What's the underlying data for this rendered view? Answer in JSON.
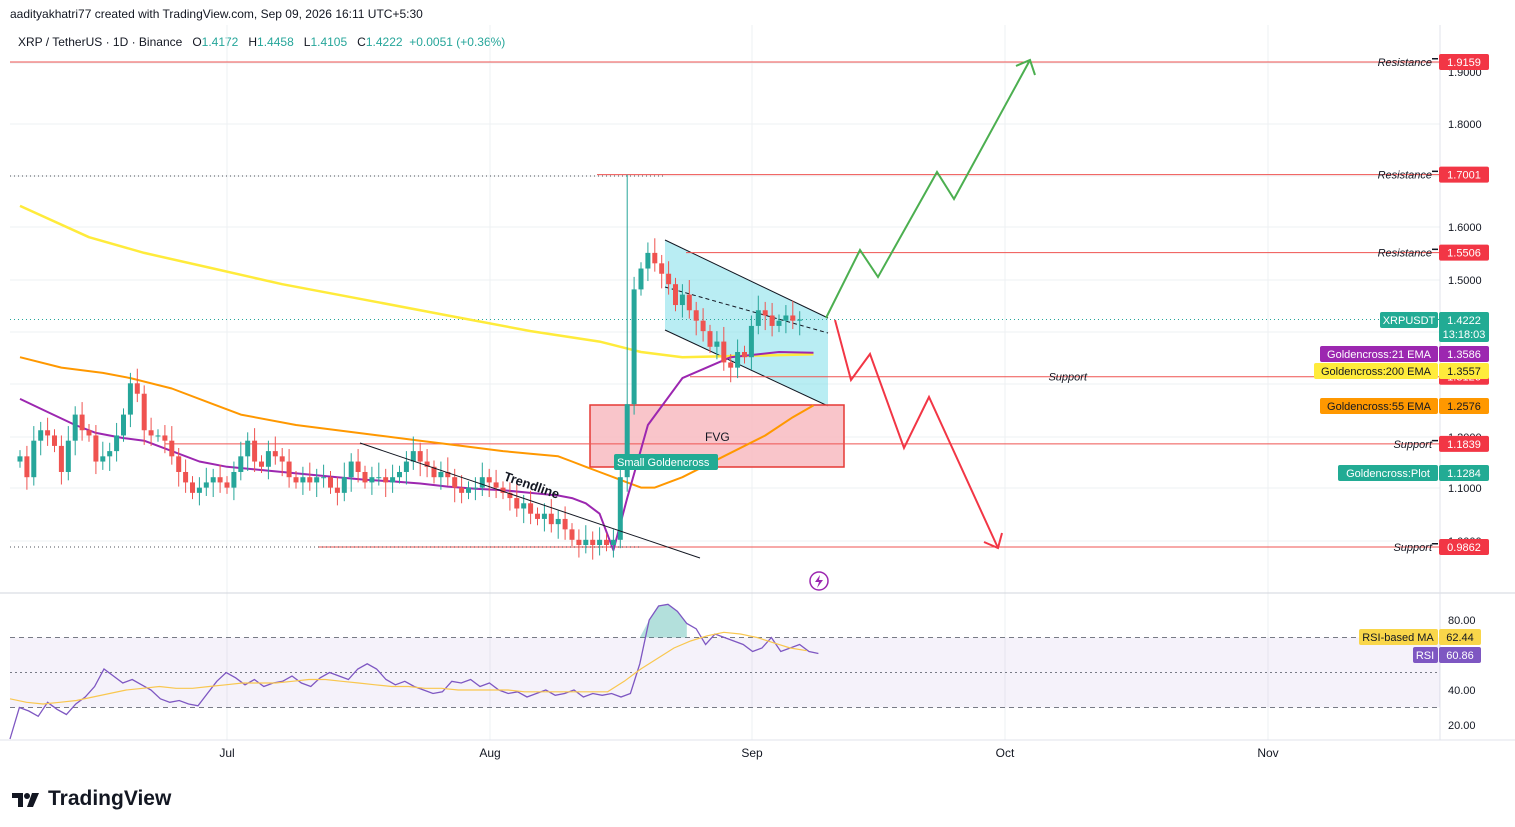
{
  "header": {
    "credit": "aadityakhatri77 created with TradingView.com, Sep 09, 2026 16:11 UTC+5:30",
    "symbol": "XRP / TetherUS · 1D · Binance",
    "o_label": "O",
    "o": "1.4172",
    "h_label": "H",
    "h": "1.4458",
    "l_label": "L",
    "l": "1.4105",
    "c_label": "C",
    "c": "1.4222",
    "change": "+0.0051 (+0.36%)"
  },
  "brand": {
    "name": "TradingView",
    "icon": "tradingview-logo-icon"
  },
  "colors": {
    "up": "#26a69a",
    "down": "#ef5350",
    "ema21": "#9c27b0",
    "ema55": "#ff9800",
    "ema200": "#ffeb3b",
    "resistance": "#ef5350",
    "channel": "#80deea",
    "fvg": "#f8b7bd",
    "rsi": "#7e57c2",
    "rsi_ma": "#f9c74f",
    "proj_up": "#4caf50",
    "proj_down": "#f23645"
  },
  "chart_data": [
    {
      "type": "candlestick",
      "symbol": "XRPUSDT",
      "timeframe": "1D",
      "x_ticks": [
        "Jul",
        "Aug",
        "Sep",
        "Oct",
        "Nov"
      ],
      "y_ticks": [
        "1.9000",
        "1.8000",
        "1.6000",
        "1.5000",
        "1.2000",
        "1.1000",
        "1.0000"
      ],
      "ylim": [
        0.9,
        1.95
      ],
      "grid": true,
      "ohlc_cur": [
        1.4172,
        1.4458,
        1.4105,
        1.4222
      ],
      "levels": [
        {
          "label": "Resistance",
          "value": "1.9159",
          "v": 1.9159
        },
        {
          "label": "Resistance",
          "value": "1.7001",
          "v": 1.7001
        },
        {
          "label": "Resistance",
          "value": "1.5506",
          "v": 1.5506
        },
        {
          "label": "Support",
          "value": "1.3126",
          "v": 1.3126
        },
        {
          "label": "Support",
          "value": "1.1839",
          "v": 1.1839
        },
        {
          "label": "Support",
          "value": "0.9862",
          "v": 0.9862
        }
      ],
      "price_tags": [
        {
          "label": "XRPUSDT",
          "value": "1.4222",
          "sub": "13:18:03",
          "v": 1.4222
        },
        {
          "label": "Goldencross:21 EMA",
          "value": "1.3586",
          "v": 1.3586
        },
        {
          "label": "Goldencross:200 EMA",
          "value": "1.3557",
          "v": 1.3557
        },
        {
          "label": "Goldencross:55 EMA",
          "value": "1.2576",
          "v": 1.2576
        },
        {
          "label": "Goldencross:Plot",
          "value": "1.1284",
          "v": 1.1284
        }
      ],
      "annotations": [
        "Trendline",
        "FVG",
        "Small Goldencross"
      ],
      "closes": [
        1.16,
        1.12,
        1.19,
        1.21,
        1.2,
        1.18,
        1.13,
        1.19,
        1.24,
        1.21,
        1.2,
        1.15,
        1.16,
        1.17,
        1.2,
        1.24,
        1.3,
        1.28,
        1.21,
        1.2,
        1.2,
        1.19,
        1.16,
        1.13,
        1.11,
        1.09,
        1.1,
        1.11,
        1.12,
        1.11,
        1.1,
        1.13,
        1.16,
        1.19,
        1.15,
        1.14,
        1.17,
        1.16,
        1.15,
        1.12,
        1.11,
        1.12,
        1.11,
        1.12,
        1.12,
        1.1,
        1.09,
        1.12,
        1.15,
        1.13,
        1.11,
        1.12,
        1.12,
        1.11,
        1.12,
        1.13,
        1.15,
        1.17,
        1.15,
        1.14,
        1.12,
        1.13,
        1.12,
        1.1,
        1.09,
        1.1,
        1.1,
        1.12,
        1.11,
        1.1,
        1.09,
        1.08,
        1.06,
        1.07,
        1.05,
        1.04,
        1.05,
        1.03,
        1.04,
        1.02,
        1.0,
        0.99,
        1.0,
        0.99,
        1.0,
        0.99,
        1.0,
        1.12,
        1.26,
        1.48,
        1.52,
        1.55,
        1.53,
        1.51,
        1.49,
        1.45,
        1.47,
        1.44,
        1.42,
        1.4,
        1.37,
        1.38,
        1.34,
        1.33,
        1.36,
        1.35,
        1.41,
        1.44,
        1.43,
        1.41,
        1.42,
        1.43,
        1.42,
        1.4222
      ],
      "ema21": [
        1.27,
        1.245,
        1.22,
        1.205,
        1.2,
        1.195,
        1.19,
        1.17,
        1.15,
        1.14,
        1.135,
        1.13,
        1.125,
        1.12,
        1.115,
        1.112,
        1.108,
        1.102,
        1.098,
        1.095,
        1.09,
        1.085,
        1.08,
        1.07,
        1.05,
        0.98,
        1.08,
        1.22,
        1.31,
        1.35,
        1.36,
        1.3586
      ],
      "ema21_x": [
        0,
        4,
        8,
        11,
        13,
        15,
        18,
        22,
        26,
        30,
        34,
        38,
        42,
        46,
        50,
        54,
        58,
        62,
        66,
        70,
        74,
        78,
        80,
        82,
        84,
        86,
        88,
        91,
        96,
        103,
        110,
        115
      ],
      "ema55": [
        1.35,
        1.33,
        1.32,
        1.31,
        1.29,
        1.26,
        1.24,
        1.22,
        1.21,
        1.2,
        1.19,
        1.18,
        1.17,
        1.165,
        1.16,
        1.15,
        1.14,
        1.13,
        1.12,
        1.11,
        1.1,
        1.1,
        1.12,
        1.16,
        1.2,
        1.235,
        1.2576
      ],
      "ema55_x": [
        0,
        6,
        12,
        16,
        22,
        28,
        32,
        40,
        46,
        52,
        58,
        64,
        70,
        74,
        78,
        80,
        82,
        84,
        86,
        88,
        90,
        92,
        96,
        102,
        108,
        112,
        115
      ],
      "ema200": [
        1.64,
        1.58,
        1.55,
        1.52,
        1.49,
        1.46,
        1.43,
        1.4,
        1.38,
        1.36,
        1.35,
        1.352,
        1.354,
        1.3557
      ],
      "ema200_x": [
        0,
        10,
        18,
        28,
        38,
        50,
        62,
        74,
        84,
        90,
        96,
        102,
        110,
        115
      ],
      "rsi_ticks": [
        "80.00",
        "40.00",
        "20.00"
      ],
      "rsi_ma": {
        "label": "RSI-based MA",
        "value": "62.44",
        "v": 62.44
      },
      "rsi": {
        "label": "RSI",
        "value": "60.86",
        "v": 60.86
      },
      "rsi_values": [
        12,
        30,
        28,
        25,
        33,
        29,
        26,
        32,
        36,
        42,
        52,
        48,
        44,
        46,
        43,
        40,
        35,
        33,
        34,
        32,
        31,
        38,
        45,
        50,
        47,
        43,
        46,
        42,
        44,
        45,
        48,
        44,
        42,
        47,
        50,
        48,
        46,
        52,
        55,
        52,
        46,
        43,
        45,
        42,
        40,
        38,
        39,
        45,
        44,
        46,
        42,
        44,
        40,
        38,
        39,
        36,
        38,
        40,
        37,
        38,
        40,
        36,
        38,
        37,
        38,
        36,
        38,
        55,
        80,
        88,
        89,
        85,
        78,
        75,
        66,
        72,
        70,
        68,
        66,
        62,
        64,
        70,
        62,
        64,
        66,
        62,
        60.86
      ],
      "rsi_ma_values": [
        35,
        33,
        32,
        33,
        34,
        36,
        38,
        40,
        41,
        42,
        41,
        41,
        42,
        43,
        44,
        44,
        44,
        45,
        46,
        46,
        45,
        44,
        43,
        42,
        42,
        41,
        41,
        40,
        40,
        40,
        40,
        39,
        39,
        39,
        39,
        39,
        39,
        45,
        52,
        58,
        64,
        68,
        71,
        73,
        72,
        70,
        67,
        64,
        62.44
      ]
    }
  ]
}
